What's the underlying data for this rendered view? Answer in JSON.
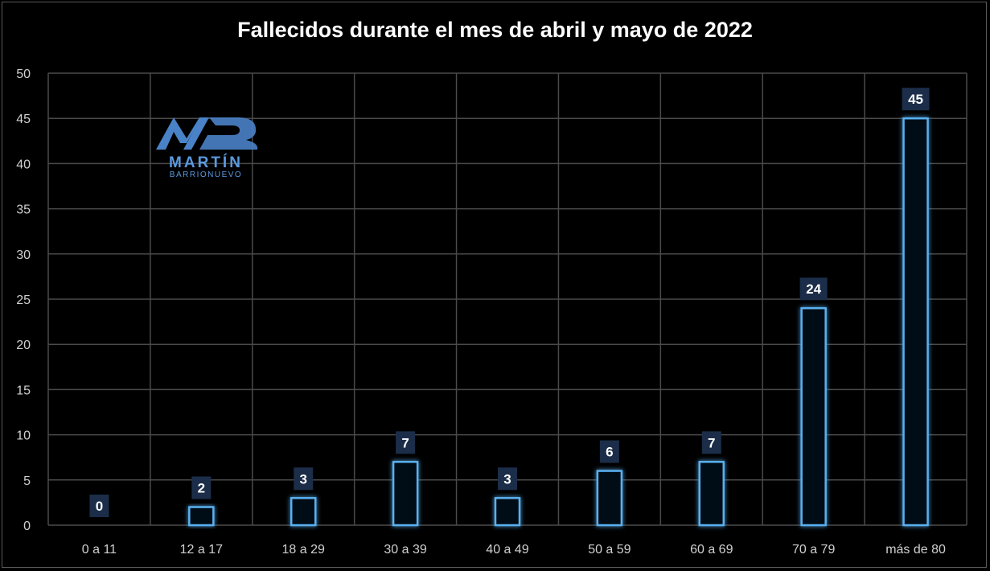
{
  "chart_data": {
    "type": "bar",
    "title": "Fallecidos durante el mes de abril y mayo de 2022",
    "categories": [
      "0 a 11",
      "12 a 17",
      "18 a 29",
      "30 a 39",
      "40 a 49",
      "50 a 59",
      "60 a 69",
      "70 a 79",
      "más de 80"
    ],
    "values": [
      0,
      2,
      3,
      7,
      3,
      6,
      7,
      24,
      45
    ],
    "ylim": [
      0,
      50
    ],
    "yticks": [
      0,
      5,
      10,
      15,
      20,
      25,
      30,
      35,
      40,
      45,
      50
    ],
    "grid": true,
    "xlabel": "",
    "ylabel": ""
  },
  "logo": {
    "line1": "MARTÍN",
    "line2": "BARRIONUEVO"
  },
  "colors": {
    "bar": "#5ab0f0",
    "glow": "#2f7fd0",
    "label_bg": "#1b2d48",
    "grid": "#4a4a4a",
    "logo_blue": "#4a82c8"
  }
}
